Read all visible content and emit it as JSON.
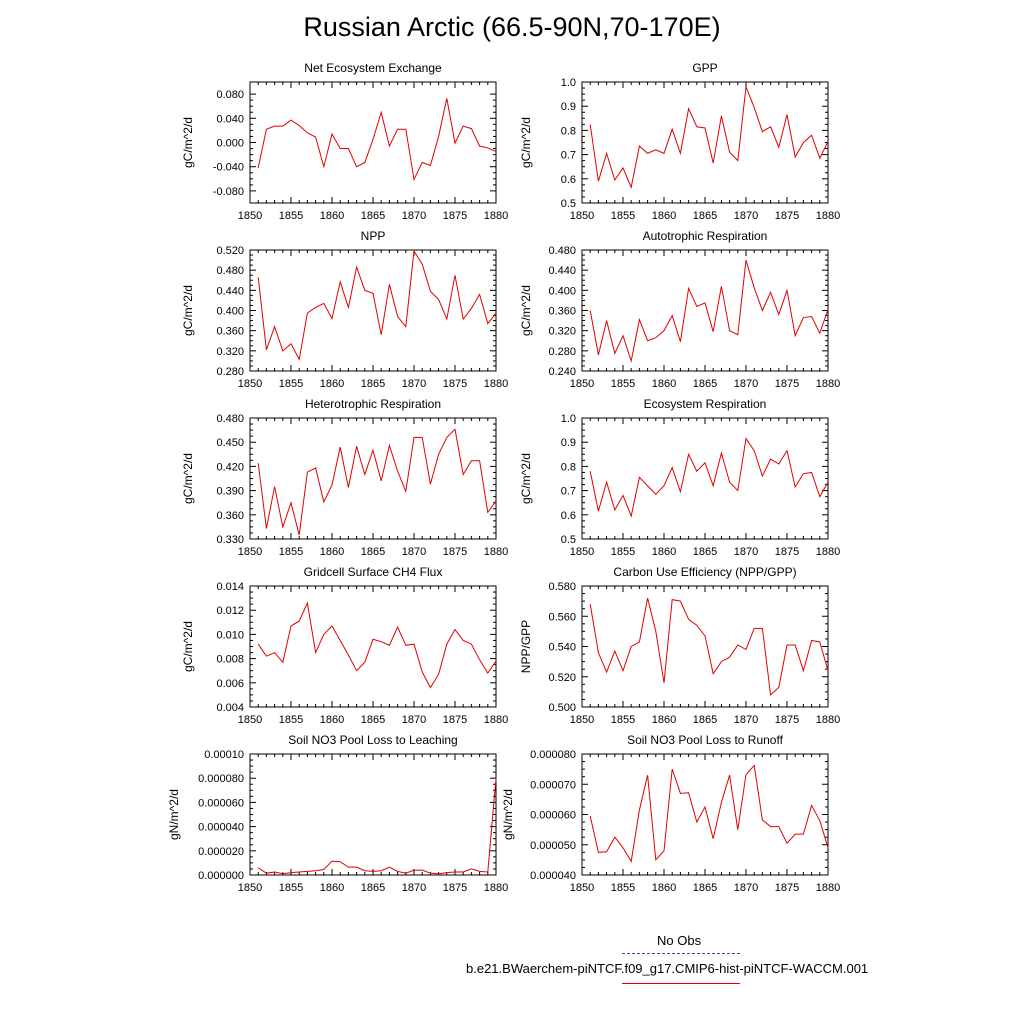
{
  "title": "Russian Arctic (66.5-90N,70-170E)",
  "legend": {
    "obs_label": "No Obs",
    "model_label": "b.e21.BWaerchem-piNTCF.f09_g17.CMIP6-hist-piNTCF-WACCM.001",
    "obs_color": "#3b3bd0",
    "model_color": "#e00000"
  },
  "chart_data": [
    {
      "type": "line",
      "title": "Net Ecosystem Exchange",
      "ylabel": "gC/m^2/d",
      "xlim": [
        1850,
        1880
      ],
      "ylim": [
        -0.1,
        0.1
      ],
      "xticks": [
        1850,
        1855,
        1860,
        1865,
        1870,
        1875,
        1880
      ],
      "yticks": [
        -0.08,
        -0.04,
        0.0,
        0.04,
        0.08
      ],
      "ytick_labels": [
        "-0.080",
        "-0.040",
        "0.000",
        "0.040",
        "0.080"
      ],
      "x": [
        1851,
        1852,
        1853,
        1854,
        1855,
        1856,
        1857,
        1858,
        1859,
        1860,
        1861,
        1862,
        1863,
        1864,
        1865,
        1866,
        1867,
        1868,
        1869,
        1870,
        1871,
        1872,
        1873,
        1874,
        1875,
        1876,
        1877,
        1878,
        1879,
        1880
      ],
      "series": [
        {
          "values": [
            -0.042,
            0.022,
            0.027,
            0.027,
            0.037,
            0.028,
            0.016,
            0.009,
            -0.04,
            0.014,
            -0.01,
            -0.01,
            -0.04,
            -0.033,
            0.005,
            0.05,
            -0.006,
            0.022,
            0.022,
            -0.061,
            -0.033,
            -0.038,
            0.01,
            0.073,
            -0.001,
            0.027,
            0.023,
            -0.006,
            -0.009,
            -0.015
          ]
        }
      ]
    },
    {
      "type": "line",
      "title": "GPP",
      "ylabel": "gC/m^2/d",
      "xlim": [
        1850,
        1880
      ],
      "ylim": [
        0.5,
        1.0
      ],
      "xticks": [
        1850,
        1855,
        1860,
        1865,
        1870,
        1875,
        1880
      ],
      "yticks": [
        0.5,
        0.6,
        0.7,
        0.8,
        0.9,
        1.0
      ],
      "ytick_labels": [
        "0.5",
        "0.6",
        "0.7",
        "0.8",
        "0.9",
        "1.0"
      ],
      "x": [
        1851,
        1852,
        1853,
        1854,
        1855,
        1856,
        1857,
        1858,
        1859,
        1860,
        1861,
        1862,
        1863,
        1864,
        1865,
        1866,
        1867,
        1868,
        1869,
        1870,
        1871,
        1872,
        1873,
        1874,
        1875,
        1876,
        1877,
        1878,
        1879,
        1880
      ],
      "series": [
        {
          "values": [
            0.825,
            0.59,
            0.705,
            0.595,
            0.645,
            0.565,
            0.735,
            0.705,
            0.72,
            0.705,
            0.805,
            0.705,
            0.89,
            0.815,
            0.81,
            0.665,
            0.86,
            0.71,
            0.675,
            0.98,
            0.895,
            0.795,
            0.815,
            0.73,
            0.865,
            0.69,
            0.75,
            0.78,
            0.685,
            0.755
          ]
        }
      ]
    },
    {
      "type": "line",
      "title": "NPP",
      "ylabel": "gC/m^2/d",
      "xlim": [
        1850,
        1880
      ],
      "ylim": [
        0.28,
        0.52
      ],
      "xticks": [
        1850,
        1855,
        1860,
        1865,
        1870,
        1875,
        1880
      ],
      "yticks": [
        0.28,
        0.32,
        0.36,
        0.4,
        0.44,
        0.48,
        0.52
      ],
      "ytick_labels": [
        "0.280",
        "0.320",
        "0.360",
        "0.400",
        "0.440",
        "0.480",
        "0.520"
      ],
      "x": [
        1851,
        1852,
        1853,
        1854,
        1855,
        1856,
        1857,
        1858,
        1859,
        1860,
        1861,
        1862,
        1863,
        1864,
        1865,
        1866,
        1867,
        1868,
        1869,
        1870,
        1871,
        1872,
        1873,
        1874,
        1875,
        1876,
        1877,
        1878,
        1879,
        1880
      ],
      "series": [
        {
          "values": [
            0.466,
            0.322,
            0.368,
            0.32,
            0.334,
            0.303,
            0.395,
            0.406,
            0.414,
            0.384,
            0.457,
            0.406,
            0.486,
            0.44,
            0.434,
            0.352,
            0.452,
            0.388,
            0.368,
            0.518,
            0.492,
            0.438,
            0.422,
            0.383,
            0.47,
            0.383,
            0.404,
            0.432,
            0.374,
            0.395
          ]
        }
      ]
    },
    {
      "type": "line",
      "title": "Autotrophic Respiration",
      "ylabel": "gC/m^2/d",
      "xlim": [
        1850,
        1880
      ],
      "ylim": [
        0.24,
        0.48
      ],
      "xticks": [
        1850,
        1855,
        1860,
        1865,
        1870,
        1875,
        1880
      ],
      "yticks": [
        0.24,
        0.28,
        0.32,
        0.36,
        0.4,
        0.44,
        0.48
      ],
      "ytick_labels": [
        "0.240",
        "0.280",
        "0.320",
        "0.360",
        "0.400",
        "0.440",
        "0.480"
      ],
      "x": [
        1851,
        1852,
        1853,
        1854,
        1855,
        1856,
        1857,
        1858,
        1859,
        1860,
        1861,
        1862,
        1863,
        1864,
        1865,
        1866,
        1867,
        1868,
        1869,
        1870,
        1871,
        1872,
        1873,
        1874,
        1875,
        1876,
        1877,
        1878,
        1879,
        1880
      ],
      "series": [
        {
          "values": [
            0.36,
            0.272,
            0.34,
            0.275,
            0.31,
            0.26,
            0.342,
            0.3,
            0.306,
            0.32,
            0.35,
            0.298,
            0.404,
            0.368,
            0.375,
            0.318,
            0.408,
            0.32,
            0.312,
            0.46,
            0.405,
            0.36,
            0.396,
            0.352,
            0.4,
            0.31,
            0.346,
            0.348,
            0.315,
            0.362
          ]
        }
      ]
    },
    {
      "type": "line",
      "title": "Heterotrophic Respiration",
      "ylabel": "gC/m^2/d",
      "xlim": [
        1850,
        1880
      ],
      "ylim": [
        0.33,
        0.48
      ],
      "xticks": [
        1850,
        1855,
        1860,
        1865,
        1870,
        1875,
        1880
      ],
      "yticks": [
        0.33,
        0.36,
        0.39,
        0.42,
        0.45,
        0.48
      ],
      "ytick_labels": [
        "0.330",
        "0.360",
        "0.390",
        "0.420",
        "0.450",
        "0.480"
      ],
      "x": [
        1851,
        1852,
        1853,
        1854,
        1855,
        1856,
        1857,
        1858,
        1859,
        1860,
        1861,
        1862,
        1863,
        1864,
        1865,
        1866,
        1867,
        1868,
        1869,
        1870,
        1871,
        1872,
        1873,
        1874,
        1875,
        1876,
        1877,
        1878,
        1879,
        1880
      ],
      "series": [
        {
          "values": [
            0.424,
            0.343,
            0.395,
            0.345,
            0.375,
            0.335,
            0.413,
            0.418,
            0.376,
            0.397,
            0.444,
            0.394,
            0.445,
            0.41,
            0.44,
            0.402,
            0.446,
            0.414,
            0.389,
            0.456,
            0.456,
            0.398,
            0.435,
            0.456,
            0.466,
            0.41,
            0.427,
            0.427,
            0.363,
            0.377
          ]
        }
      ]
    },
    {
      "type": "line",
      "title": "Ecosystem Respiration",
      "ylabel": "gC/m^2/d",
      "xlim": [
        1850,
        1880
      ],
      "ylim": [
        0.5,
        1.0
      ],
      "xticks": [
        1850,
        1855,
        1860,
        1865,
        1870,
        1875,
        1880
      ],
      "yticks": [
        0.5,
        0.6,
        0.7,
        0.8,
        0.9,
        1.0
      ],
      "ytick_labels": [
        "0.5",
        "0.6",
        "0.7",
        "0.8",
        "0.9",
        "1.0"
      ],
      "x": [
        1851,
        1852,
        1853,
        1854,
        1855,
        1856,
        1857,
        1858,
        1859,
        1860,
        1861,
        1862,
        1863,
        1864,
        1865,
        1866,
        1867,
        1868,
        1869,
        1870,
        1871,
        1872,
        1873,
        1874,
        1875,
        1876,
        1877,
        1878,
        1879,
        1880
      ],
      "series": [
        {
          "values": [
            0.78,
            0.615,
            0.735,
            0.62,
            0.68,
            0.595,
            0.755,
            0.72,
            0.685,
            0.72,
            0.795,
            0.695,
            0.85,
            0.78,
            0.815,
            0.72,
            0.855,
            0.735,
            0.7,
            0.915,
            0.865,
            0.76,
            0.83,
            0.81,
            0.865,
            0.715,
            0.77,
            0.775,
            0.675,
            0.735
          ]
        }
      ]
    },
    {
      "type": "line",
      "title": "Gridcell Surface CH4 Flux",
      "ylabel": "gC/m^2/d",
      "xlim": [
        1850,
        1880
      ],
      "ylim": [
        0.004,
        0.014
      ],
      "xticks": [
        1850,
        1855,
        1860,
        1865,
        1870,
        1875,
        1880
      ],
      "yticks": [
        0.004,
        0.006,
        0.008,
        0.01,
        0.012,
        0.014
      ],
      "ytick_labels": [
        "0.004",
        "0.006",
        "0.008",
        "0.010",
        "0.012",
        "0.014"
      ],
      "x": [
        1851,
        1852,
        1853,
        1854,
        1855,
        1856,
        1857,
        1858,
        1859,
        1860,
        1861,
        1862,
        1863,
        1864,
        1865,
        1866,
        1867,
        1868,
        1869,
        1870,
        1871,
        1872,
        1873,
        1874,
        1875,
        1876,
        1877,
        1878,
        1879,
        1880
      ],
      "series": [
        {
          "values": [
            0.0092,
            0.0082,
            0.0085,
            0.0077,
            0.0107,
            0.0111,
            0.0126,
            0.0085,
            0.01,
            0.0107,
            0.0095,
            0.0083,
            0.007,
            0.0077,
            0.0096,
            0.0094,
            0.0091,
            0.0106,
            0.0091,
            0.0092,
            0.0069,
            0.0056,
            0.0067,
            0.0092,
            0.0104,
            0.0095,
            0.0092,
            0.0079,
            0.0068,
            0.0078
          ]
        }
      ]
    },
    {
      "type": "line",
      "title": "Carbon Use Efficiency (NPP/GPP)",
      "ylabel": "NPP/GPP",
      "xlim": [
        1850,
        1880
      ],
      "ylim": [
        0.5,
        0.58
      ],
      "xticks": [
        1850,
        1855,
        1860,
        1865,
        1870,
        1875,
        1880
      ],
      "yticks": [
        0.5,
        0.52,
        0.54,
        0.56,
        0.58
      ],
      "ytick_labels": [
        "0.500",
        "0.520",
        "0.540",
        "0.560",
        "0.580"
      ],
      "x": [
        1851,
        1852,
        1853,
        1854,
        1855,
        1856,
        1857,
        1858,
        1859,
        1860,
        1861,
        1862,
        1863,
        1864,
        1865,
        1866,
        1867,
        1868,
        1869,
        1870,
        1871,
        1872,
        1873,
        1874,
        1875,
        1876,
        1877,
        1878,
        1879,
        1880
      ],
      "series": [
        {
          "values": [
            0.568,
            0.536,
            0.523,
            0.537,
            0.524,
            0.54,
            0.543,
            0.572,
            0.55,
            0.516,
            0.571,
            0.57,
            0.558,
            0.554,
            0.547,
            0.522,
            0.53,
            0.533,
            0.541,
            0.538,
            0.552,
            0.552,
            0.508,
            0.513,
            0.541,
            0.541,
            0.524,
            0.544,
            0.543,
            0.524
          ]
        }
      ]
    },
    {
      "type": "line",
      "title": "Soil NO3 Pool Loss to Leaching",
      "ylabel": "gN/m^2/d",
      "xlim": [
        1850,
        1880
      ],
      "ylim": [
        0.0,
        0.0001
      ],
      "xticks": [
        1850,
        1855,
        1860,
        1865,
        1870,
        1875,
        1880
      ],
      "yticks": [
        0.0,
        2e-05,
        4e-05,
        6e-05,
        8e-05,
        0.0001
      ],
      "ytick_labels": [
        "0.000000",
        "0.000020",
        "0.000040",
        "0.000060",
        "0.000080",
        "0.00010"
      ],
      "x": [
        1851,
        1852,
        1853,
        1854,
        1855,
        1856,
        1857,
        1858,
        1859,
        1860,
        1861,
        1862,
        1863,
        1864,
        1865,
        1866,
        1867,
        1868,
        1869,
        1870,
        1871,
        1872,
        1873,
        1874,
        1875,
        1876,
        1877,
        1878,
        1879,
        1880
      ],
      "series": [
        {
          "values": [
            6e-06,
            1.5e-06,
            2.5e-06,
            1e-06,
            2e-06,
            2.5e-06,
            3e-06,
            3.5e-06,
            4.5e-06,
            1.15e-05,
            1.1e-05,
            6.5e-06,
            6.5e-06,
            3.5e-06,
            3e-06,
            3.5e-06,
            6.5e-06,
            3e-06,
            1.5e-06,
            4e-06,
            4e-06,
            1.5e-06,
            1e-06,
            2e-06,
            2.5e-06,
            2.5e-06,
            5e-06,
            3e-06,
            2.5e-06,
            8e-05
          ]
        }
      ]
    },
    {
      "type": "line",
      "title": "Soil NO3 Pool Loss to Runoff",
      "ylabel": "gN/m^2/d",
      "xlim": [
        1850,
        1880
      ],
      "ylim": [
        4e-05,
        8e-05
      ],
      "xticks": [
        1850,
        1855,
        1860,
        1865,
        1870,
        1875,
        1880
      ],
      "yticks": [
        4e-05,
        5e-05,
        6e-05,
        7e-05,
        8e-05
      ],
      "ytick_labels": [
        "0.000040",
        "0.000050",
        "0.000060",
        "0.000070",
        "0.000080"
      ],
      "x": [
        1851,
        1852,
        1853,
        1854,
        1855,
        1856,
        1857,
        1858,
        1859,
        1860,
        1861,
        1862,
        1863,
        1864,
        1865,
        1866,
        1867,
        1868,
        1869,
        1870,
        1871,
        1872,
        1873,
        1874,
        1875,
        1876,
        1877,
        1878,
        1879,
        1880
      ],
      "series": [
        {
          "values": [
            5.95e-05,
            4.75e-05,
            4.77e-05,
            5.25e-05,
            4.9e-05,
            4.45e-05,
            6.15e-05,
            7.3e-05,
            4.5e-05,
            4.8e-05,
            7.5e-05,
            6.7e-05,
            6.72e-05,
            5.75e-05,
            6.25e-05,
            5.2e-05,
            6.4e-05,
            7.3e-05,
            5.5e-05,
            7.32e-05,
            7.62e-05,
            5.82e-05,
            5.6e-05,
            5.6e-05,
            5.05e-05,
            5.35e-05,
            5.35e-05,
            6.3e-05,
            5.8e-05,
            4.9e-05
          ]
        }
      ]
    }
  ]
}
